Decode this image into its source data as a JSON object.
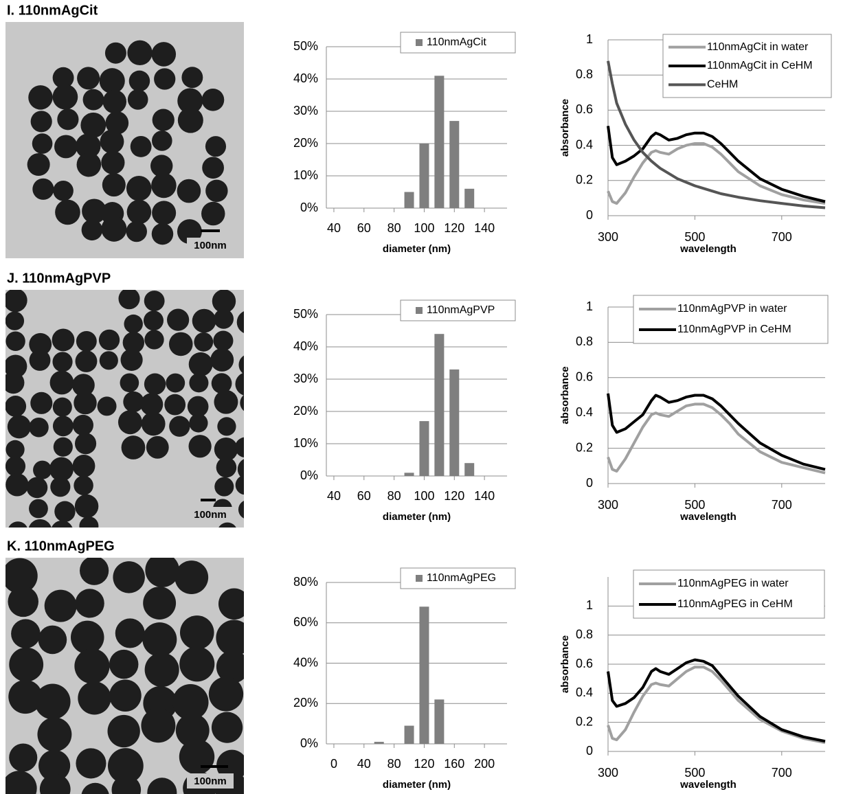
{
  "panels": [
    {
      "title": "I. 110nmAgCit",
      "scale_label": "100nm"
    },
    {
      "title": "J. 110nmAgPVP",
      "scale_label": "100nm"
    },
    {
      "title": "K. 110nmAgPEG",
      "scale_label": "100nm"
    }
  ],
  "chart_data": [
    {
      "type": "bar",
      "x_label": "diameter (nm)",
      "x": [
        90,
        100,
        110,
        120,
        130
      ],
      "series": [
        {
          "name": "110nmAgCit",
          "color": "#7f7f7f",
          "values": [
            5,
            20,
            41,
            27,
            6
          ]
        }
      ],
      "xlim": [
        35,
        155
      ],
      "xticks": [
        40,
        60,
        80,
        100,
        120,
        140
      ],
      "ylim": [
        0,
        50
      ],
      "yticks": [
        {
          "value": 0,
          "label": "0%"
        },
        {
          "value": 10,
          "label": "10%"
        },
        {
          "value": 20,
          "label": "20%"
        },
        {
          "value": 30,
          "label": "30%"
        },
        {
          "value": 40,
          "label": "40%"
        },
        {
          "value": 50,
          "label": "50%"
        }
      ],
      "grid": true,
      "legend": "upper-right"
    },
    {
      "type": "line",
      "x_label": "wavelength",
      "y_label": "absorbance",
      "x": [
        300,
        310,
        320,
        340,
        360,
        380,
        400,
        410,
        420,
        440,
        460,
        480,
        500,
        520,
        540,
        560,
        580,
        600,
        650,
        700,
        750,
        800
      ],
      "series": [
        {
          "name": "110nmAgCit in water",
          "color": "#a0a0a0",
          "values": [
            0.14,
            0.08,
            0.07,
            0.13,
            0.22,
            0.3,
            0.36,
            0.37,
            0.36,
            0.35,
            0.38,
            0.4,
            0.41,
            0.41,
            0.39,
            0.35,
            0.3,
            0.25,
            0.17,
            0.12,
            0.09,
            0.07
          ]
        },
        {
          "name": "110nmAgCit in CeHM",
          "color": "#000000",
          "values": [
            0.51,
            0.33,
            0.29,
            0.31,
            0.34,
            0.38,
            0.45,
            0.47,
            0.46,
            0.43,
            0.44,
            0.46,
            0.47,
            0.47,
            0.45,
            0.41,
            0.36,
            0.31,
            0.21,
            0.15,
            0.11,
            0.08
          ]
        },
        {
          "name": "CeHM",
          "color": "#555555",
          "values": [
            0.88,
            0.75,
            0.64,
            0.52,
            0.43,
            0.36,
            0.31,
            0.29,
            0.27,
            0.24,
            0.21,
            0.19,
            0.17,
            0.155,
            0.14,
            0.125,
            0.115,
            0.105,
            0.085,
            0.07,
            0.055,
            0.045
          ]
        }
      ],
      "xlim": [
        300,
        800
      ],
      "xticks": [
        300,
        500,
        700
      ],
      "ylim": [
        0,
        1
      ],
      "yticks": [
        0,
        0.2,
        0.4,
        0.6,
        0.8,
        1
      ],
      "grid": true,
      "legend": "upper-right"
    },
    {
      "type": "bar",
      "x_label": "diameter (nm)",
      "x": [
        90,
        100,
        110,
        120,
        130
      ],
      "series": [
        {
          "name": "110nmAgPVP",
          "color": "#7f7f7f",
          "values": [
            1,
            17,
            44,
            33,
            4
          ]
        }
      ],
      "xlim": [
        35,
        155
      ],
      "xticks": [
        40,
        60,
        80,
        100,
        120,
        140
      ],
      "ylim": [
        0,
        50
      ],
      "yticks": [
        {
          "value": 0,
          "label": "0%"
        },
        {
          "value": 10,
          "label": "10%"
        },
        {
          "value": 20,
          "label": "20%"
        },
        {
          "value": 30,
          "label": "30%"
        },
        {
          "value": 40,
          "label": "40%"
        },
        {
          "value": 50,
          "label": "50%"
        }
      ],
      "grid": true,
      "legend": "upper-right"
    },
    {
      "type": "line",
      "x_label": "wavelength",
      "y_label": "absorbance",
      "x": [
        300,
        310,
        320,
        340,
        360,
        380,
        400,
        410,
        420,
        440,
        460,
        480,
        500,
        520,
        540,
        560,
        580,
        600,
        650,
        700,
        750,
        800
      ],
      "series": [
        {
          "name": "110nmAgPVP in water",
          "color": "#a0a0a0",
          "values": [
            0.15,
            0.08,
            0.07,
            0.14,
            0.23,
            0.32,
            0.39,
            0.4,
            0.39,
            0.38,
            0.41,
            0.44,
            0.45,
            0.45,
            0.43,
            0.39,
            0.34,
            0.28,
            0.18,
            0.12,
            0.09,
            0.06
          ]
        },
        {
          "name": "110nmAgPVP in CeHM",
          "color": "#000000",
          "values": [
            0.51,
            0.33,
            0.29,
            0.31,
            0.35,
            0.39,
            0.47,
            0.5,
            0.49,
            0.46,
            0.47,
            0.49,
            0.5,
            0.5,
            0.48,
            0.44,
            0.39,
            0.34,
            0.23,
            0.16,
            0.11,
            0.08
          ]
        }
      ],
      "xlim": [
        300,
        800
      ],
      "xticks": [
        300,
        500,
        700
      ],
      "ylim": [
        0,
        1
      ],
      "yticks": [
        0,
        0.2,
        0.4,
        0.6,
        0.8,
        1
      ],
      "grid": true,
      "legend": "upper-right"
    },
    {
      "type": "bar",
      "x_label": "diameter (nm)",
      "x": [
        60,
        100,
        120,
        140
      ],
      "series": [
        {
          "name": "110nmAgPEG",
          "color": "#7f7f7f",
          "values": [
            1,
            9,
            68,
            22
          ]
        }
      ],
      "xlim": [
        -10,
        230
      ],
      "xticks": [
        0,
        40,
        80,
        120,
        160,
        200
      ],
      "ylim": [
        0,
        80
      ],
      "yticks": [
        {
          "value": 0,
          "label": "0%"
        },
        {
          "value": 20,
          "label": "20%"
        },
        {
          "value": 40,
          "label": "40%"
        },
        {
          "value": 60,
          "label": "60%"
        },
        {
          "value": 80,
          "label": "80%"
        }
      ],
      "grid": true,
      "legend": "upper-right"
    },
    {
      "type": "line",
      "x_label": "wavelength",
      "y_label": "absorbance",
      "x": [
        300,
        310,
        320,
        340,
        360,
        380,
        400,
        410,
        420,
        440,
        460,
        480,
        500,
        520,
        540,
        560,
        580,
        600,
        650,
        700,
        750,
        800
      ],
      "series": [
        {
          "name": "110nmAgPEG in water",
          "color": "#a0a0a0",
          "values": [
            0.18,
            0.09,
            0.08,
            0.15,
            0.27,
            0.38,
            0.46,
            0.47,
            0.46,
            0.45,
            0.5,
            0.55,
            0.58,
            0.58,
            0.55,
            0.49,
            0.42,
            0.35,
            0.22,
            0.14,
            0.09,
            0.06
          ]
        },
        {
          "name": "110nmAgPEG in CeHM",
          "color": "#000000",
          "values": [
            0.55,
            0.35,
            0.31,
            0.33,
            0.37,
            0.44,
            0.55,
            0.57,
            0.55,
            0.53,
            0.57,
            0.61,
            0.63,
            0.62,
            0.59,
            0.52,
            0.45,
            0.38,
            0.24,
            0.15,
            0.1,
            0.07
          ]
        }
      ],
      "xlim": [
        300,
        800
      ],
      "xticks": [
        300,
        500,
        700
      ],
      "ylim": [
        0,
        1.2
      ],
      "yticks": [
        0,
        0.2,
        0.4,
        0.6,
        0.8,
        1
      ],
      "grid": true,
      "legend": "upper-right"
    }
  ]
}
